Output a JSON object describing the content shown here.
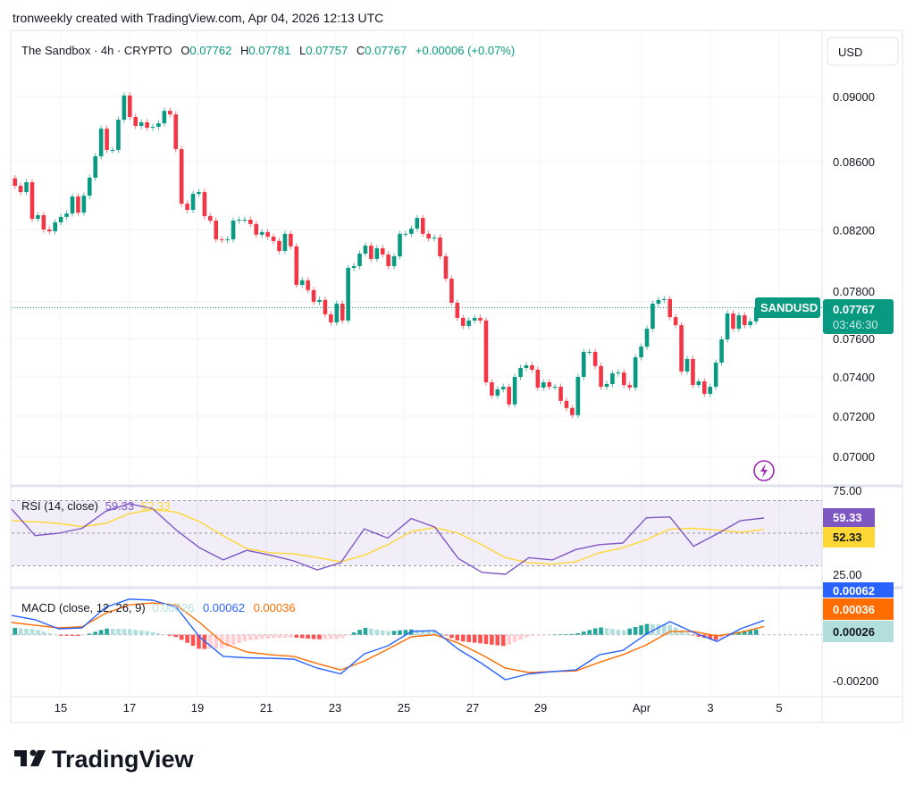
{
  "attribution": "tronweekly created with TradingView.com, Apr 04, 2026 12:13 UTC",
  "currency_button": "USD",
  "logo_text": "TradingView",
  "legend": {
    "symbol": "The Sandbox · 4h · CRYPTO",
    "o_label": "O",
    "o": "0.07762",
    "h_label": "H",
    "h": "0.07781",
    "l_label": "L",
    "l": "0.07757",
    "c_label": "C",
    "c": "0.07767",
    "change": "+0.00006 (+0.07%)"
  },
  "last_price": {
    "ticker": "SANDUSD",
    "price": "0.07767",
    "countdown": "03:46:30"
  },
  "colors": {
    "up": "#089981",
    "down": "#F23645",
    "rsi": "#7E57C2",
    "rsi_ma": "#FDD835",
    "macd": "#2962FF",
    "signal": "#FF6D00",
    "hist_up_strong": "#26A69A",
    "hist_up_weak": "#B2DFDB",
    "hist_down_strong": "#FF5252",
    "hist_down_weak": "#FFCDD2",
    "lightning": "#9C27B0"
  },
  "icons": {
    "lightning": "lightning-icon",
    "logo": "tradingview-logo"
  },
  "chart_data": [
    {
      "type": "candlestick",
      "scale": "log",
      "price_ticks": [
        "0.09000",
        "0.08600",
        "0.08200",
        "0.07800",
        "0.07600",
        "0.07400",
        "0.07200",
        "0.07000"
      ],
      "x_ticks": [
        "15",
        "17",
        "19",
        "21",
        "23",
        "25",
        "27",
        "29",
        "Apr",
        "3",
        "5"
      ],
      "grid": true,
      "first_open": 0.085,
      "closes": [
        0.08456,
        0.08419,
        0.08477,
        0.08263,
        0.08284,
        0.08202,
        0.08192,
        0.08243,
        0.08274,
        0.08294,
        0.08393,
        0.08299,
        0.08398,
        0.08504,
        0.08632,
        0.088,
        0.0867,
        0.0867,
        0.08855,
        0.09006,
        0.08872,
        0.08817,
        0.08839,
        0.08806,
        0.08811,
        0.08833,
        0.0891,
        0.08888,
        0.08675,
        0.08351,
        0.08315,
        0.08408,
        0.08419,
        0.08279,
        0.08253,
        0.08146,
        0.08141,
        0.08146,
        0.08253,
        0.08258,
        0.08258,
        0.08233,
        0.08172,
        0.08187,
        0.08161,
        0.08136,
        0.0808,
        0.08177,
        0.08106,
        0.07891,
        0.07916,
        0.07862,
        0.07798,
        0.07808,
        0.0773,
        0.07687,
        0.07788,
        0.07697,
        0.07985,
        0.07995,
        0.08065,
        0.0811,
        0.08035,
        0.08095,
        0.0806,
        0.07995,
        0.0805,
        0.08177,
        0.08177,
        0.08207,
        0.08268,
        0.08177,
        0.08151,
        0.08156,
        0.0805,
        0.07925,
        0.07793,
        0.07711,
        0.07668,
        0.07697,
        0.07711,
        0.07697,
        0.07372,
        0.07304,
        0.07336,
        0.07349,
        0.07259,
        0.074,
        0.07446,
        0.0746,
        0.07437,
        0.07345,
        0.07372,
        0.07349,
        0.07349,
        0.07277,
        0.07241,
        0.07205,
        0.074,
        0.0753,
        0.0753,
        0.07456,
        0.07349,
        0.07363,
        0.07418,
        0.07423,
        0.07358,
        0.07345,
        0.07502,
        0.07558,
        0.07653,
        0.07788,
        0.07808,
        0.07813,
        0.07715,
        0.07672,
        0.07428,
        0.07493,
        0.07358,
        0.07377,
        0.07313,
        0.07349,
        0.07474,
        0.07596,
        0.07735,
        0.07653,
        0.07725,
        0.07672,
        0.07692,
        0.07767
      ]
    },
    {
      "type": "line",
      "title": "RSI (14, close)",
      "value_rsi": "59.33",
      "value_ma": "52.33",
      "y_ticks": [
        "75.00",
        "25.00"
      ],
      "bands": [
        70,
        50,
        30
      ],
      "series": [
        {
          "values": [
            64.8,
            48.5,
            50,
            53,
            63.5,
            68,
            65,
            52,
            41,
            33.6,
            39.5,
            36.5,
            33,
            27.5,
            32,
            52.7,
            47,
            59,
            53.8,
            34.5,
            26,
            24.8,
            35,
            33.6,
            40,
            43,
            44,
            59.5,
            60,
            42,
            49.5,
            57.7,
            59.33
          ]
        },
        {
          "values": [
            57.7,
            57,
            56,
            54,
            56,
            62,
            64.5,
            63,
            57,
            48.4,
            40.5,
            38,
            37.4,
            35,
            32.5,
            36.5,
            43,
            51,
            53.5,
            50,
            43,
            35,
            32,
            31,
            32.5,
            38,
            41,
            46,
            52.5,
            53,
            52,
            50.5,
            52.33
          ]
        }
      ]
    },
    {
      "type": "line+bar",
      "title": "MACD (close, 12, 26, 9)",
      "value_hist": "0.00026",
      "value_macd": "0.00062",
      "value_signal": "0.00036",
      "y_ticks": [
        "-0.00200"
      ],
      "series": [
        {
          "values": [
            0.00084,
            0.00065,
            0.00026,
            0.0003,
            0.0012,
            0.00155,
            0.0015,
            0.0012,
            -0.0001,
            -0.00094,
            -0.001,
            -0.00102,
            -0.00106,
            -0.00145,
            -0.0017,
            -0.00083,
            -0.00048,
            0.00014,
            0.00018,
            -0.00063,
            -0.00125,
            -0.00195,
            -0.0017,
            -0.0016,
            -0.00153,
            -0.00087,
            -0.00068,
            3e-05,
            0.00057,
            0.0001,
            -0.00029,
            0.00026,
            0.00062
          ]
        },
        {
          "values": [
            0.00053,
            0.00041,
            0.0003,
            0.00035,
            0.00093,
            0.0013,
            0.00138,
            0.0013,
            0.00053,
            -0.00036,
            -0.00075,
            -0.00087,
            -0.00094,
            -0.00125,
            -0.00153,
            -0.00114,
            -0.00063,
            -9e-05,
            0.0,
            -0.00036,
            -0.00087,
            -0.00145,
            -0.00164,
            -0.0016,
            -0.00157,
            -0.0012,
            -0.00087,
            -0.00044,
            0.00014,
            0.00014,
            -5e-05,
            0.0001,
            0.00036
          ]
        }
      ]
    }
  ]
}
